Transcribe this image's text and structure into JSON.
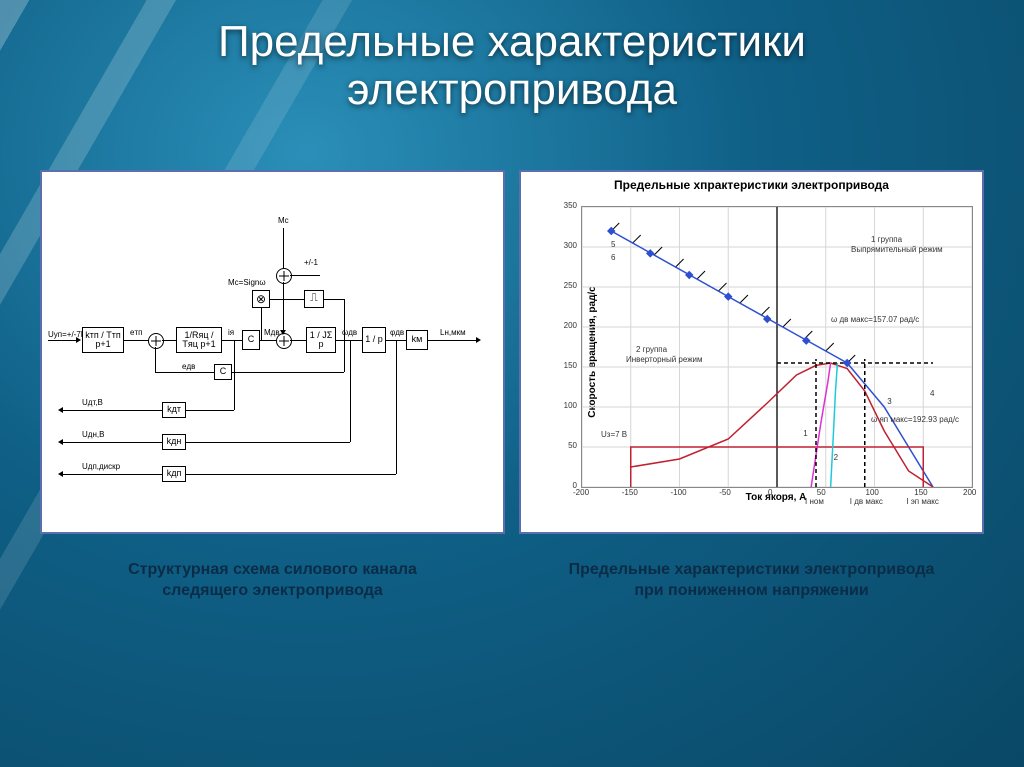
{
  "title_line1": "Предельные характеристики",
  "title_line2": "электропривода",
  "caption_left_l1": "Структурная схема силового канала",
  "caption_left_l2": "следящего электропривода",
  "caption_right_l1": "Предельные характеристики электропривода",
  "caption_right_l2": "при пониженном напряжении",
  "block_diagram": {
    "input_label": "Uуп=+/-7В",
    "mc_label": "Mс",
    "mc_sign": "Mс=Signω",
    "pm1": "+/-1",
    "blocks": {
      "b1": "kтп / Tтп p+1",
      "b2": "1/Rяц / Tяц p+1",
      "b3": "C",
      "b4": "1 / JΣ p",
      "b5": "1 / p",
      "b6": "kм",
      "mult": "⊗",
      "step": "⎍",
      "cfb": "C",
      "kdt": "kдт",
      "kdn": "kдн",
      "kdp": "kдп"
    },
    "sig": {
      "etp": "eтп",
      "ia": "iя",
      "mdv": "Mдв",
      "wdv": "ωдв",
      "phidv": "φдв",
      "lh": "Lн,мкм",
      "edv": "eдв",
      "out1": "Uдт,В",
      "out2": "Uдн,В",
      "out3": "Uдп,дискр"
    }
  },
  "chart": {
    "title": "Предельные хпрактеристики электропривода",
    "xlabel": "Ток якоря, А",
    "ylabel": "Скорость вращения, рад/с",
    "xlim": [
      -200,
      200
    ],
    "xtick_step": 50,
    "ylim": [
      0,
      350
    ],
    "ytick_step": 50,
    "grid_color": "#d6d6d6",
    "notes": {
      "n5": "5",
      "n6": "6",
      "n1": "1",
      "n2": "2",
      "n3": "3",
      "n4": "4",
      "grp1_l1": "1 группа",
      "grp1_l2": "Выпрямительный режим",
      "grp2_l1": "2 группа",
      "grp2_l2": "Инверторный режим",
      "uz": "Uз=7 В",
      "w1": "ω дв макс=157.07 рад/с",
      "w2": "ω яп макс=192.93 рад/с",
      "inom": "I ном",
      "idvmax": "I дв макс",
      "iepmax": "I эп макс"
    },
    "colors": {
      "blue": "#2e4fd1",
      "red": "#c02030",
      "magenta": "#e030d0",
      "cyan": "#20c8d8",
      "black": "#000000"
    },
    "series": {
      "blue_line": {
        "color": "#2e4fd1",
        "points": [
          [
            -170,
            320
          ],
          [
            -50,
            238
          ],
          [
            72,
            155
          ]
        ]
      },
      "blue_markers": [
        [
          -170,
          320
        ],
        [
          -130,
          292
        ],
        [
          -90,
          265
        ],
        [
          -50,
          238
        ],
        [
          -10,
          210
        ],
        [
          30,
          183
        ],
        [
          72,
          155
        ]
      ],
      "slope3": {
        "color": "#2e4fd1",
        "points": [
          [
            72,
            155
          ],
          [
            110,
            100
          ],
          [
            160,
            0
          ]
        ]
      },
      "red_curve": {
        "color": "#c02030",
        "points": [
          [
            -150,
            25
          ],
          [
            -100,
            35
          ],
          [
            -50,
            60
          ],
          [
            -10,
            105
          ],
          [
            20,
            140
          ],
          [
            40,
            152
          ],
          [
            55,
            155
          ],
          [
            72,
            148
          ],
          [
            90,
            120
          ],
          [
            110,
            70
          ],
          [
            135,
            20
          ],
          [
            160,
            0
          ]
        ]
      },
      "red_box": {
        "color": "#c02030",
        "points": [
          [
            -150,
            0
          ],
          [
            -150,
            50
          ],
          [
            150,
            50
          ],
          [
            150,
            0
          ]
        ]
      },
      "magenta": {
        "color": "#e030d0",
        "points": [
          [
            35,
            0
          ],
          [
            45,
            80
          ],
          [
            52,
            130
          ],
          [
            55,
            155
          ]
        ]
      },
      "cyan": {
        "color": "#20c8d8",
        "points": [
          [
            55,
            0
          ],
          [
            58,
            70
          ],
          [
            60,
            120
          ],
          [
            62,
            155
          ]
        ]
      },
      "dash_v1": {
        "color": "#000000",
        "dash": true,
        "points": [
          [
            40,
            0
          ],
          [
            40,
            160
          ]
        ]
      },
      "dash_v2": {
        "color": "#000000",
        "dash": true,
        "points": [
          [
            90,
            0
          ],
          [
            90,
            160
          ]
        ]
      },
      "dash_h": {
        "color": "#000000",
        "dash": true,
        "points": [
          [
            0,
            155
          ],
          [
            160,
            155
          ]
        ]
      }
    }
  },
  "style": {
    "panel_border": "#5b6fae",
    "title_color": "#ffffff",
    "caption_color": "#0b2c47",
    "title_fontsize": 44,
    "caption_fontsize": 16
  }
}
